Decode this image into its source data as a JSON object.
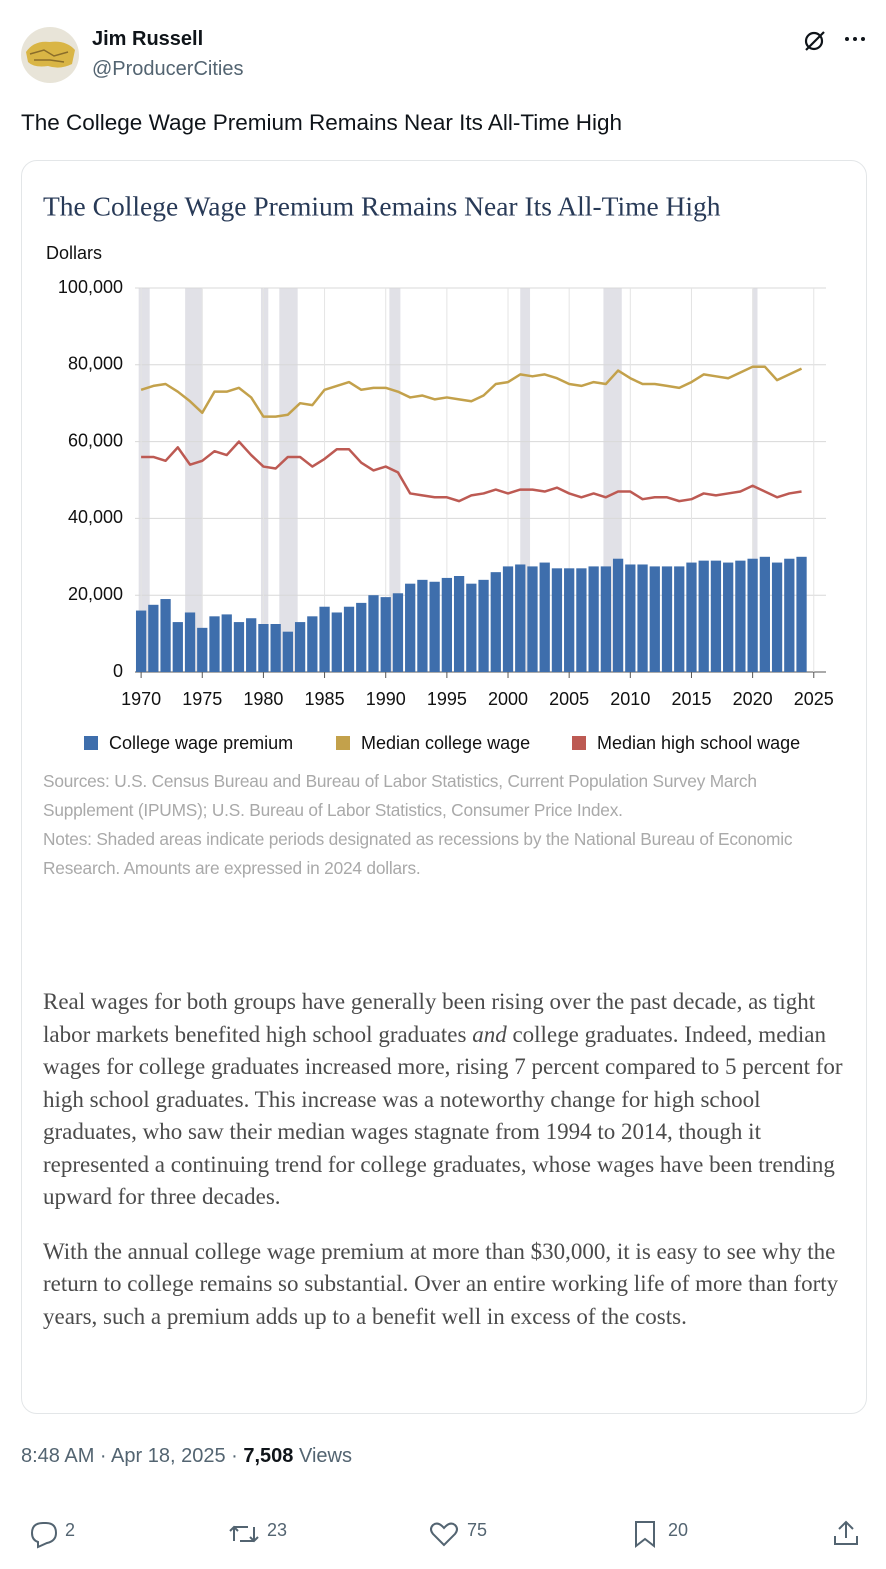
{
  "author": {
    "name": "Jim Russell",
    "handle": "@ProducerCities"
  },
  "text": "The College Wage Premium Remains Near Its All-Time High",
  "chart_data": {
    "type": "bar",
    "title": "The College Wage Premium Remains Near Its All-Time High",
    "y_label": "Dollars",
    "x": [
      1970,
      1971,
      1972,
      1973,
      1974,
      1975,
      1976,
      1977,
      1978,
      1979,
      1980,
      1981,
      1982,
      1983,
      1984,
      1985,
      1986,
      1987,
      1988,
      1989,
      1990,
      1991,
      1992,
      1993,
      1994,
      1995,
      1996,
      1997,
      1998,
      1999,
      2000,
      2001,
      2002,
      2003,
      2004,
      2005,
      2006,
      2007,
      2008,
      2009,
      2010,
      2011,
      2012,
      2013,
      2014,
      2015,
      2016,
      2017,
      2018,
      2019,
      2020,
      2021,
      2022,
      2023,
      2024
    ],
    "xlim": [
      1969.5,
      2026
    ],
    "xticks": [
      1970,
      1975,
      1980,
      1985,
      1990,
      1995,
      2000,
      2005,
      2010,
      2015,
      2020,
      2025
    ],
    "ylim": [
      0,
      100000
    ],
    "yticks": [
      0,
      {
        "value": 20000,
        "label": "20,000"
      },
      {
        "value": 40000,
        "label": "40,000"
      },
      {
        "value": 60000,
        "label": "60,000"
      },
      {
        "value": 80000,
        "label": "80,000"
      },
      {
        "value": 100000,
        "label": "100,000"
      }
    ],
    "grid": true,
    "series": [
      {
        "name": "College wage premium",
        "type": "bar",
        "color": "#3e6eac",
        "values": [
          16000,
          17500,
          19000,
          13000,
          15500,
          11500,
          14500,
          15000,
          13000,
          14000,
          12500,
          12500,
          10500,
          13000,
          14500,
          17000,
          15500,
          17000,
          18000,
          20000,
          19500,
          20500,
          23000,
          24000,
          23500,
          24500,
          25000,
          23000,
          24000,
          26000,
          27500,
          28000,
          27500,
          28500,
          27000,
          27000,
          27000,
          27500,
          27500,
          29500,
          28000,
          28000,
          27500,
          27500,
          27500,
          28500,
          29000,
          29000,
          28500,
          29000,
          29500,
          30000,
          28500,
          29500,
          30000
        ]
      },
      {
        "name": "Median college wage",
        "type": "line",
        "color": "#c3a14b",
        "values": [
          73500,
          74500,
          75000,
          73000,
          70500,
          67500,
          73000,
          73000,
          74000,
          71500,
          66500,
          66500,
          67000,
          70000,
          69500,
          73500,
          74500,
          75500,
          73500,
          74000,
          74000,
          73000,
          71500,
          72000,
          71000,
          71500,
          71000,
          70500,
          72000,
          75000,
          75500,
          77500,
          77000,
          77500,
          76500,
          75000,
          74500,
          75500,
          75000,
          78500,
          76500,
          75000,
          75000,
          74500,
          74000,
          75500,
          77500,
          77000,
          76500,
          78000,
          79500,
          79500,
          76000,
          77500,
          79000
        ]
      },
      {
        "name": "Median high school wage",
        "type": "line",
        "color": "#bd5a53",
        "values": [
          56000,
          56000,
          55000,
          58500,
          54000,
          55000,
          57500,
          56500,
          60000,
          56500,
          53500,
          53000,
          56000,
          56000,
          53500,
          55500,
          58000,
          58000,
          54500,
          52500,
          53500,
          52000,
          46500,
          46000,
          45500,
          45500,
          44500,
          46000,
          46500,
          47500,
          46500,
          47500,
          47500,
          47000,
          48000,
          46500,
          45500,
          46500,
          45500,
          47000,
          47000,
          45000,
          45500,
          45500,
          44500,
          45000,
          46500,
          46000,
          46500,
          47000,
          48500,
          47000,
          45500,
          46500,
          47000
        ]
      }
    ],
    "recession_color": "#e1e1e7",
    "recessions": [
      [
        1969.8,
        1970.7
      ],
      [
        1973.6,
        1975.0
      ],
      [
        1979.8,
        1980.4
      ],
      [
        1981.3,
        1982.8
      ],
      [
        1990.3,
        1991.2
      ],
      [
        2001.0,
        2001.8
      ],
      [
        2007.8,
        2009.3
      ],
      [
        2020.0,
        2020.4
      ]
    ],
    "legend": "bottom",
    "sources": "Sources: U.S. Census Bureau and Bureau of Labor Statistics, Current Population Survey March Supplement (IPUMS); U.S. Bureau of Labor Statistics, Consumer Price Index.",
    "notes": "Notes: Shaded areas indicate periods designated as recessions by the National Bureau of Economic Research. Amounts are expressed in 2024 dollars."
  },
  "body": [
    [
      "Real wages for both groups have generally been rising over the past decade, as tight labor markets benefited high school graduates ",
      "and",
      " college graduates. Indeed, median wages for college graduates increased more, rising 7 percent compared to 5 percent for high school graduates. This increase was a noteworthy change for high school graduates, who saw their median wages stagnate from 1994 to 2014, though it represented a continuing trend for college graduates, whose wages have been trending upward for three decades."
    ],
    [
      "With the annual college wage premium at more than $30,000, it is easy to see why the return to college remains so substantial. Over an entire working life of more than forty years, such a premium adds up to a benefit well in excess of the costs."
    ]
  ],
  "timestamp": "8:48 AM · Apr 18, 2025 ·",
  "views": "7,508",
  "views_label": "Views",
  "stats": {
    "replies": "2",
    "reposts": "23",
    "likes": "75",
    "bookmarks": "20"
  }
}
